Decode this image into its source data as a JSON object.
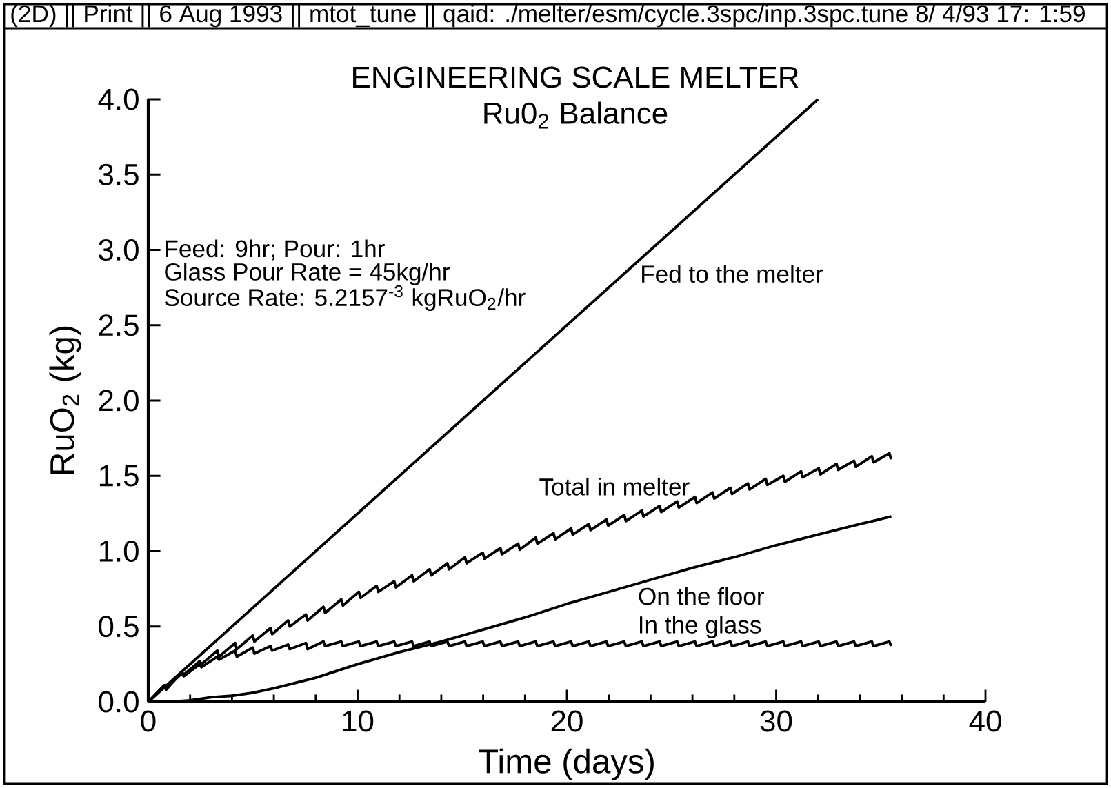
{
  "chart_data": {
    "type": "line",
    "title": "ENGINEERING SCALE MELTER",
    "subtitle": "Ru0$_{2}$ Balance",
    "xlabel": "Time (days)",
    "ylabel": "RuO$_{2}$ (kg)",
    "annotations": [
      "(2D) || Print || 6 Aug 1993 || mtot_tune || qaid: ./melter/esm/cycle.3spc/inp.3spc.tune 8/ 4/93 17: 1:59",
      "Feed: 9hr; Pour: 1hr",
      "Glass Pour Rate = 45kg/hr",
      "Source Rate: 5.2157$^{-3}$ kgRuO$_{2}$/hr"
    ],
    "xlim": [
      0,
      40
    ],
    "ylim": [
      0,
      4.0
    ],
    "xticks": [
      0,
      10,
      20,
      30,
      40
    ],
    "yticks": [
      {
        "value": 0,
        "label": "0.0"
      },
      {
        "value": 0.5,
        "label": "0.5"
      },
      {
        "value": 1,
        "label": "1.0"
      },
      {
        "value": 1.5,
        "label": "1.5"
      },
      {
        "value": 2,
        "label": "2.0"
      },
      {
        "value": 2.5,
        "label": "2.5"
      },
      {
        "value": 3,
        "label": "3.0"
      },
      {
        "value": 3.5,
        "label": "3.5"
      },
      {
        "value": 4,
        "label": "4.0"
      }
    ],
    "series": [
      {
        "name": "Fed to the melter",
        "color": "#000000",
        "x": [
          0,
          32.0
        ],
        "values": [
          0,
          4.0
        ]
      },
      {
        "name": "Total in melter",
        "color": "#000000",
        "x": [
          0,
          0.77,
          0.85,
          1.61,
          1.69,
          2.46,
          2.54,
          3.3,
          3.38,
          4.15,
          4.23,
          4.99,
          5.07,
          5.84,
          5.92,
          6.68,
          6.76,
          7.53,
          7.61,
          8.37,
          8.45,
          9.22,
          9.3,
          10.06,
          10.14,
          10.91,
          10.99,
          11.75,
          11.83,
          12.6,
          12.68,
          13.44,
          13.52,
          14.29,
          14.37,
          15.13,
          15.21,
          15.98,
          16.06,
          16.82,
          16.9,
          17.67,
          17.75,
          18.51,
          18.59,
          19.36,
          19.44,
          20.2,
          20.28,
          21.05,
          21.13,
          21.89,
          21.97,
          22.74,
          22.82,
          23.58,
          23.66,
          24.43,
          24.51,
          25.27,
          25.35,
          26.12,
          26.2,
          26.96,
          27.04,
          27.81,
          27.89,
          28.65,
          28.73,
          29.5,
          29.58,
          30.34,
          30.42,
          31.19,
          31.27,
          32.03,
          32.11,
          32.88,
          32.96,
          33.72,
          33.8,
          34.57,
          34.65,
          35.41,
          35.49
        ],
        "values": [
          0,
          0.11,
          0.08,
          0.2,
          0.18,
          0.27,
          0.25,
          0.34,
          0.3,
          0.39,
          0.35,
          0.44,
          0.4,
          0.49,
          0.45,
          0.54,
          0.5,
          0.58,
          0.54,
          0.63,
          0.59,
          0.68,
          0.64,
          0.73,
          0.69,
          0.77,
          0.73,
          0.8,
          0.76,
          0.84,
          0.8,
          0.88,
          0.84,
          0.92,
          0.88,
          0.96,
          0.92,
          0.99,
          0.95,
          1.02,
          0.98,
          1.05,
          1.01,
          1.09,
          1.05,
          1.12,
          1.08,
          1.15,
          1.11,
          1.18,
          1.14,
          1.21,
          1.17,
          1.24,
          1.2,
          1.27,
          1.23,
          1.3,
          1.26,
          1.33,
          1.29,
          1.36,
          1.32,
          1.39,
          1.35,
          1.42,
          1.38,
          1.45,
          1.41,
          1.48,
          1.44,
          1.5,
          1.46,
          1.53,
          1.49,
          1.55,
          1.51,
          1.58,
          1.54,
          1.6,
          1.56,
          1.63,
          1.59,
          1.65,
          1.61
        ]
      },
      {
        "name": "On the floor",
        "color": "#000000",
        "x": [
          0,
          1,
          2,
          3,
          4,
          5,
          6,
          8,
          10,
          12,
          14,
          16,
          18,
          20,
          22,
          24,
          26,
          28,
          30,
          32,
          34,
          35.5
        ],
        "values": [
          0,
          0.0,
          0.01,
          0.03,
          0.04,
          0.06,
          0.09,
          0.16,
          0.25,
          0.33,
          0.4,
          0.48,
          0.56,
          0.65,
          0.73,
          0.81,
          0.89,
          0.96,
          1.04,
          1.11,
          1.18,
          1.23
        ]
      },
      {
        "name": "In the glass",
        "color": "#000000",
        "x": [
          0,
          0.77,
          0.85,
          1.61,
          1.69,
          2.46,
          2.54,
          3.3,
          3.38,
          4.15,
          4.23,
          4.99,
          5.07,
          5.84,
          5.92,
          6.68,
          6.76,
          7.53,
          7.61,
          8.37,
          8.45,
          9.22,
          9.3,
          10.06,
          10.14,
          10.91,
          10.99,
          11.75,
          11.83,
          12.6,
          12.68,
          13.44,
          13.52,
          14.29,
          14.37,
          15.13,
          15.21,
          15.98,
          16.06,
          16.82,
          16.9,
          17.67,
          17.75,
          18.51,
          18.59,
          19.36,
          19.44,
          20.2,
          20.28,
          21.05,
          21.13,
          21.89,
          21.97,
          22.74,
          22.82,
          23.58,
          23.66,
          24.43,
          24.51,
          25.27,
          25.35,
          26.12,
          26.2,
          26.96,
          27.04,
          27.81,
          27.89,
          28.65,
          28.73,
          29.5,
          29.58,
          30.34,
          30.42,
          31.19,
          31.27,
          32.03,
          32.11,
          32.88,
          32.96,
          33.72,
          33.8,
          34.57,
          34.65,
          35.41,
          35.49
        ],
        "values": [
          0,
          0.11,
          0.09,
          0.19,
          0.17,
          0.25,
          0.23,
          0.3,
          0.28,
          0.34,
          0.3,
          0.36,
          0.32,
          0.37,
          0.34,
          0.38,
          0.35,
          0.39,
          0.35,
          0.4,
          0.37,
          0.4,
          0.37,
          0.4,
          0.37,
          0.4,
          0.37,
          0.4,
          0.37,
          0.4,
          0.37,
          0.4,
          0.37,
          0.4,
          0.37,
          0.4,
          0.37,
          0.4,
          0.37,
          0.4,
          0.37,
          0.4,
          0.37,
          0.4,
          0.37,
          0.4,
          0.37,
          0.4,
          0.37,
          0.4,
          0.37,
          0.4,
          0.37,
          0.4,
          0.37,
          0.4,
          0.37,
          0.4,
          0.37,
          0.4,
          0.37,
          0.4,
          0.37,
          0.4,
          0.37,
          0.4,
          0.37,
          0.4,
          0.37,
          0.4,
          0.37,
          0.4,
          0.37,
          0.4,
          0.37,
          0.4,
          0.37,
          0.4,
          0.37,
          0.4,
          0.37,
          0.4,
          0.37,
          0.4,
          0.37
        ]
      }
    ]
  }
}
